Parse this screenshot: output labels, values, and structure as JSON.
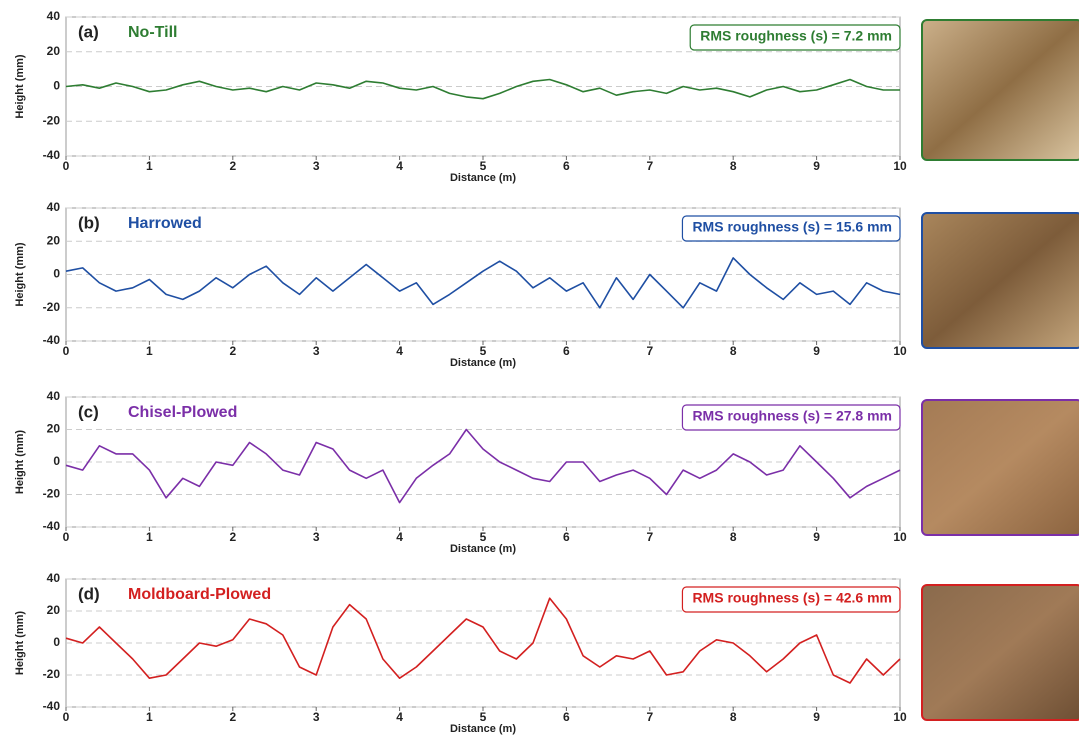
{
  "chart_data": [
    {
      "type": "line",
      "label": "(a)",
      "title": "No-Till",
      "annotation": "RMS roughness (s) = 7.2 mm",
      "xlabel": "Distance (m)",
      "ylabel": "Height (mm)",
      "x": [
        0,
        0.2,
        0.4,
        0.6,
        0.8,
        1,
        1.2,
        1.4,
        1.6,
        1.8,
        2,
        2.2,
        2.4,
        2.6,
        2.8,
        3,
        3.2,
        3.4,
        3.6,
        3.8,
        4,
        4.2,
        4.4,
        4.6,
        4.8,
        5,
        5.2,
        5.4,
        5.6,
        5.8,
        6,
        6.2,
        6.4,
        6.6,
        6.8,
        7,
        7.2,
        7.4,
        7.6,
        7.8,
        8,
        8.2,
        8.4,
        8.6,
        8.8,
        9,
        9.2,
        9.4,
        9.6,
        9.8,
        10
      ],
      "series": [
        {
          "color": "#2e7d32",
          "values": [
            0,
            1,
            -1,
            2,
            0,
            -3,
            -2,
            1,
            3,
            0,
            -2,
            -1,
            -3,
            0,
            -2,
            2,
            1,
            -1,
            3,
            2,
            -1,
            -2,
            0,
            -4,
            -6,
            -7,
            -4,
            0,
            3,
            4,
            1,
            -3,
            -1,
            -5,
            -3,
            -2,
            -4,
            0,
            -2,
            -1,
            -3,
            -6,
            -2,
            0,
            -3,
            -2,
            1,
            4,
            0,
            -2,
            -2
          ]
        }
      ],
      "xlim": [
        0,
        10
      ],
      "xticks": [
        0,
        1,
        2,
        3,
        4,
        5,
        6,
        7,
        8,
        9,
        10
      ],
      "ylim": [
        -40,
        40
      ],
      "yticks": [
        -40,
        -20,
        0,
        20,
        40
      ],
      "grid": true
    },
    {
      "type": "line",
      "label": "(b)",
      "title": "Harrowed",
      "annotation": "RMS roughness (s) = 15.6 mm",
      "xlabel": "Distance (m)",
      "ylabel": "Height (mm)",
      "x": [
        0,
        0.2,
        0.4,
        0.6,
        0.8,
        1,
        1.2,
        1.4,
        1.6,
        1.8,
        2,
        2.2,
        2.4,
        2.6,
        2.8,
        3,
        3.2,
        3.4,
        3.6,
        3.8,
        4,
        4.2,
        4.4,
        4.6,
        4.8,
        5,
        5.2,
        5.4,
        5.6,
        5.8,
        6,
        6.2,
        6.4,
        6.6,
        6.8,
        7,
        7.2,
        7.4,
        7.6,
        7.8,
        8,
        8.2,
        8.4,
        8.6,
        8.8,
        9,
        9.2,
        9.4,
        9.6,
        9.8,
        10
      ],
      "series": [
        {
          "color": "#1f4fa3",
          "values": [
            2,
            4,
            -5,
            -10,
            -8,
            -3,
            -12,
            -15,
            -10,
            -2,
            -8,
            0,
            5,
            -5,
            -12,
            -2,
            -10,
            -2,
            6,
            -2,
            -10,
            -5,
            -18,
            -12,
            -5,
            2,
            8,
            2,
            -8,
            -2,
            -10,
            -5,
            -20,
            -2,
            -15,
            0,
            -10,
            -20,
            -5,
            -10,
            10,
            0,
            -8,
            -15,
            -5,
            -12,
            -10,
            -18,
            -5,
            -10,
            -12
          ]
        }
      ],
      "xlim": [
        0,
        10
      ],
      "xticks": [
        0,
        1,
        2,
        3,
        4,
        5,
        6,
        7,
        8,
        9,
        10
      ],
      "ylim": [
        -40,
        40
      ],
      "yticks": [
        -40,
        -20,
        0,
        20,
        40
      ],
      "grid": true
    },
    {
      "type": "line",
      "label": "(c)",
      "title": "Chisel-Plowed",
      "annotation": "RMS roughness (s) = 27.8 mm",
      "xlabel": "Distance (m)",
      "ylabel": "Height (mm)",
      "x": [
        0,
        0.2,
        0.4,
        0.6,
        0.8,
        1,
        1.2,
        1.4,
        1.6,
        1.8,
        2,
        2.2,
        2.4,
        2.6,
        2.8,
        3,
        3.2,
        3.4,
        3.6,
        3.8,
        4,
        4.2,
        4.4,
        4.6,
        4.8,
        5,
        5.2,
        5.4,
        5.6,
        5.8,
        6,
        6.2,
        6.4,
        6.6,
        6.8,
        7,
        7.2,
        7.4,
        7.6,
        7.8,
        8,
        8.2,
        8.4,
        8.6,
        8.8,
        9,
        9.2,
        9.4,
        9.6,
        9.8,
        10
      ],
      "series": [
        {
          "color": "#7b2fa8",
          "values": [
            -2,
            -5,
            10,
            5,
            5,
            -5,
            -22,
            -10,
            -15,
            0,
            -2,
            12,
            5,
            -5,
            -8,
            12,
            8,
            -5,
            -10,
            -5,
            -25,
            -10,
            -2,
            5,
            20,
            8,
            0,
            -5,
            -10,
            -12,
            0,
            0,
            -12,
            -8,
            -5,
            -10,
            -20,
            -5,
            -10,
            -5,
            5,
            0,
            -8,
            -5,
            10,
            0,
            -10,
            -22,
            -15,
            -10,
            -5
          ]
        }
      ],
      "xlim": [
        0,
        10
      ],
      "xticks": [
        0,
        1,
        2,
        3,
        4,
        5,
        6,
        7,
        8,
        9,
        10
      ],
      "ylim": [
        -40,
        40
      ],
      "yticks": [
        -40,
        -20,
        0,
        20,
        40
      ],
      "grid": true
    },
    {
      "type": "line",
      "label": "(d)",
      "title": "Moldboard-Plowed",
      "annotation": "RMS roughness (s) = 42.6 mm",
      "xlabel": "Distance (m)",
      "ylabel": "Height (mm)",
      "x": [
        0,
        0.2,
        0.4,
        0.6,
        0.8,
        1,
        1.2,
        1.4,
        1.6,
        1.8,
        2,
        2.2,
        2.4,
        2.6,
        2.8,
        3,
        3.2,
        3.4,
        3.6,
        3.8,
        4,
        4.2,
        4.4,
        4.6,
        4.8,
        5,
        5.2,
        5.4,
        5.6,
        5.8,
        6,
        6.2,
        6.4,
        6.6,
        6.8,
        7,
        7.2,
        7.4,
        7.6,
        7.8,
        8,
        8.2,
        8.4,
        8.6,
        8.8,
        9,
        9.2,
        9.4,
        9.6,
        9.8,
        10
      ],
      "series": [
        {
          "color": "#d32020",
          "values": [
            3,
            0,
            10,
            0,
            -10,
            -22,
            -20,
            -10,
            0,
            -2,
            2,
            15,
            12,
            5,
            -15,
            -20,
            10,
            24,
            15,
            -10,
            -22,
            -15,
            -5,
            5,
            15,
            10,
            -5,
            -10,
            0,
            28,
            15,
            -8,
            -15,
            -8,
            -10,
            -5,
            -20,
            -18,
            -5,
            2,
            0,
            -8,
            -18,
            -10,
            0,
            5,
            -20,
            -25,
            -10,
            -20,
            -10
          ]
        }
      ],
      "xlim": [
        0,
        10
      ],
      "xticks": [
        0,
        1,
        2,
        3,
        4,
        5,
        6,
        7,
        8,
        9,
        10
      ],
      "ylim": [
        -40,
        40
      ],
      "yticks": [
        -40,
        -20,
        0,
        20,
        40
      ],
      "grid": true
    }
  ]
}
